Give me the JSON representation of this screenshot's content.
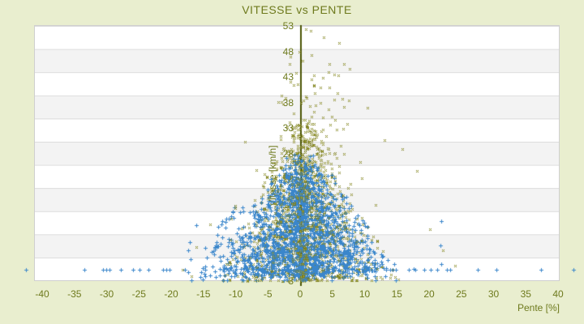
{
  "chart_data": {
    "type": "scatter",
    "title": "VITESSE vs PENTE",
    "xlabel": "Pente [%]",
    "ylabel": "Vitesse [km/h]",
    "xlim": [
      -41,
      40
    ],
    "ylim": [
      3,
      53
    ],
    "x_ticks": [
      -40,
      -35,
      -30,
      -25,
      -20,
      -15,
      -10,
      -5,
      0,
      5,
      10,
      15,
      20,
      25,
      30,
      35,
      40
    ],
    "y_ticks": [
      53,
      48,
      43,
      38,
      33,
      28,
      23,
      18,
      13,
      8,
      3
    ],
    "grid": "horizontal-bands",
    "legend": "none",
    "zero_axis_line": true,
    "seed": 1337,
    "colors": {
      "bg": "#e9eecf",
      "plotbg": "#ffffff",
      "band": "#f3f3f3",
      "grid": "#dcdcdc",
      "border": "#cfcfcf",
      "text": "#6e7a1d",
      "axis": "#4b5404",
      "blue": "#3a86cb",
      "olive": "#7b7d22",
      "olivec": "#a8ab36"
    },
    "series": [
      {
        "name": "vitesse-gps-points",
        "marker": "plus",
        "color_key": "blue",
        "layer": 2,
        "components": [
          {
            "type": "cone",
            "n": 1500,
            "base_v": 3.8,
            "apex_v": 28,
            "bias": 0.6,
            "half_bottom": 15.5,
            "half_top": 2.5,
            "mu": 0.5
          },
          {
            "type": "blob",
            "n": 150,
            "mu_x": 0,
            "sx": 8.5,
            "mu_v": 8,
            "sv": 3
          },
          {
            "type": "column",
            "n": 150,
            "mu": 0.2,
            "sigma": 0.3,
            "v_min": 3.2,
            "v_max": 21
          },
          {
            "type": "row",
            "n": 55,
            "v": 5.3,
            "jitter": 0.2,
            "x_min": -14,
            "x_max": 13.5
          },
          {
            "type": "xlist",
            "v": 5.3,
            "xs": [
              -42.5,
              -33.5,
              -30.6,
              -30.1,
              -29.6,
              -27.8,
              -25.9,
              -24.9,
              -23.5,
              -21.2,
              -20.7,
              -20.2,
              -17.8,
              13.9,
              14.4,
              14.9,
              16.9,
              17.8,
              19.3,
              20.3,
              21.3,
              22.8,
              23.3,
              27.5,
              30.5,
              37.3,
              42.4
            ]
          },
          {
            "type": "arc",
            "n": 45,
            "cx": -8,
            "rx": 7.2,
            "base_v": 3.6,
            "h": 8.2
          },
          {
            "type": "arc",
            "n": 30,
            "cx": -4.5,
            "rx": 4.4,
            "base_v": 3.4,
            "h": 5.6
          },
          {
            "type": "arc",
            "n": 26,
            "cx": 5.5,
            "rx": 5.0,
            "base_v": 3.4,
            "h": 5.2
          },
          {
            "type": "arc",
            "n": 35,
            "cx": -9,
            "rx": 4.0,
            "base_v": 8.0,
            "h": 9.0
          }
        ]
      },
      {
        "name": "pente-points",
        "marker": "diamond",
        "color_key": "olive",
        "center_color_key": "olivec",
        "layer": 1,
        "components": [
          {
            "type": "cone",
            "n": 1100,
            "base_v": 3.0,
            "apex_v": 36,
            "bias": 0.62,
            "half_bottom": 14,
            "half_top": 2.2,
            "mu": 1.2
          },
          {
            "type": "blob",
            "n": 55,
            "mu_x": 2.2,
            "sx": 2.8,
            "mu_v": 38,
            "sv": 4.5
          },
          {
            "type": "pts",
            "pts": [
              [
                0.9,
                52.4
              ],
              [
                1.6,
                52.1
              ],
              [
                3.6,
                50.7
              ],
              [
                6.0,
                49.7
              ],
              [
                0.4,
                46.2
              ],
              [
                4.4,
                43.9
              ],
              [
                5.3,
                43.5
              ],
              [
                2.1,
                43.3
              ],
              [
                -0.4,
                41.6
              ],
              [
                3.1,
                40.9
              ],
              [
                7.6,
                38.4
              ],
              [
                -2.6,
                37.7
              ],
              [
                10.4,
                37.0
              ],
              [
                13.1,
                30.6
              ],
              [
                -8.6,
                30.3
              ],
              [
                15.9,
                28.9
              ],
              [
                18.1,
                24.6
              ],
              [
                -13.9,
                14.1
              ],
              [
                20.1,
                13.2
              ],
              [
                -16.1,
                9.6
              ],
              [
                22.2,
                9.1
              ],
              [
                -18.2,
                5.2
              ],
              [
                24.0,
                6.0
              ]
            ]
          },
          {
            "type": "blob",
            "n": 120,
            "mu_x": 1,
            "sx": 7.5,
            "mu_v": 4.5,
            "sv": 1.2
          },
          {
            "type": "column",
            "n": 130,
            "mu": 0.3,
            "sigma": 0.45,
            "v_min": 3,
            "v_max": 30,
            "top": true
          },
          {
            "type": "blob",
            "n": 220,
            "mu_x": 1,
            "sx": 4.5,
            "mu_v": 14,
            "sv": 5.5,
            "top": true
          }
        ]
      }
    ]
  }
}
